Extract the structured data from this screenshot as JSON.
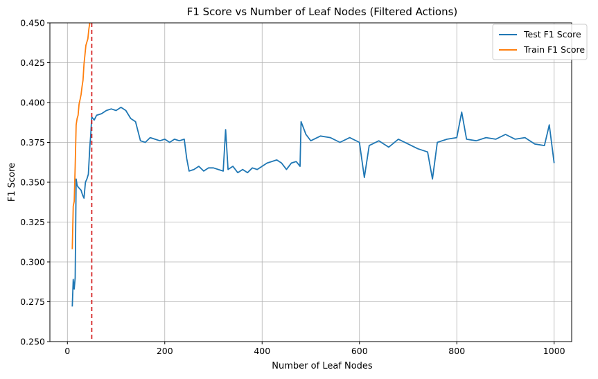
{
  "chart_data": {
    "type": "line",
    "title": "F1 Score vs Number of Leaf Nodes (Filtered Actions)",
    "xlabel": "Number of Leaf Nodes",
    "ylabel": "F1 Score",
    "xlim": [
      -36,
      1036
    ],
    "ylim": [
      0.25,
      0.45
    ],
    "xticks": [
      0,
      200,
      400,
      600,
      800,
      1000
    ],
    "xtick_labels": [
      "0",
      "200",
      "400",
      "600",
      "800",
      "1000"
    ],
    "yticks": [
      0.25,
      0.275,
      0.3,
      0.325,
      0.35,
      0.375,
      0.4,
      0.425,
      0.45
    ],
    "ytick_labels": [
      "0.250",
      "0.275",
      "0.300",
      "0.325",
      "0.350",
      "0.375",
      "0.400",
      "0.425",
      "0.450"
    ],
    "grid": true,
    "legend_position": "top-right",
    "reference_line": {
      "x": 50,
      "color": "#d62728",
      "style": "dashed"
    },
    "series": [
      {
        "name": "Test F1 Score",
        "color": "#1f77b4",
        "x": [
          10,
          12,
          14,
          16,
          18,
          20,
          22,
          25,
          28,
          31,
          34,
          37,
          40,
          43,
          46,
          48,
          50,
          55,
          60,
          70,
          80,
          90,
          100,
          110,
          120,
          130,
          140,
          150,
          160,
          170,
          180,
          190,
          200,
          210,
          220,
          230,
          240,
          245,
          250,
          260,
          270,
          280,
          290,
          300,
          310,
          320,
          325,
          330,
          340,
          350,
          360,
          370,
          380,
          390,
          400,
          410,
          420,
          430,
          440,
          450,
          460,
          470,
          478,
          480,
          490,
          500,
          520,
          540,
          560,
          580,
          600,
          610,
          620,
          640,
          660,
          680,
          700,
          720,
          740,
          750,
          760,
          780,
          800,
          810,
          820,
          840,
          860,
          880,
          900,
          920,
          940,
          960,
          980,
          990,
          1000
        ],
        "y": [
          0.272,
          0.289,
          0.283,
          0.29,
          0.352,
          0.348,
          0.347,
          0.346,
          0.345,
          0.342,
          0.34,
          0.35,
          0.352,
          0.355,
          0.372,
          0.38,
          0.391,
          0.389,
          0.392,
          0.393,
          0.395,
          0.396,
          0.395,
          0.397,
          0.395,
          0.39,
          0.388,
          0.376,
          0.375,
          0.378,
          0.377,
          0.376,
          0.377,
          0.375,
          0.377,
          0.376,
          0.377,
          0.365,
          0.357,
          0.358,
          0.36,
          0.357,
          0.359,
          0.359,
          0.358,
          0.357,
          0.383,
          0.358,
          0.36,
          0.356,
          0.358,
          0.356,
          0.359,
          0.358,
          0.36,
          0.362,
          0.363,
          0.364,
          0.362,
          0.358,
          0.362,
          0.363,
          0.36,
          0.388,
          0.38,
          0.376,
          0.379,
          0.378,
          0.375,
          0.378,
          0.375,
          0.353,
          0.373,
          0.376,
          0.372,
          0.377,
          0.374,
          0.371,
          0.369,
          0.352,
          0.375,
          0.377,
          0.378,
          0.394,
          0.377,
          0.376,
          0.378,
          0.377,
          0.38,
          0.377,
          0.378,
          0.374,
          0.373,
          0.386,
          0.362
        ]
      },
      {
        "name": "Train F1 Score",
        "color": "#ff7f0e",
        "x": [
          10,
          12,
          14,
          16,
          18,
          20,
          22,
          24,
          26,
          28,
          30,
          32,
          34,
          36,
          38,
          40,
          42,
          44,
          46
        ],
        "y": [
          0.308,
          0.335,
          0.338,
          0.36,
          0.386,
          0.39,
          0.392,
          0.399,
          0.402,
          0.405,
          0.41,
          0.414,
          0.424,
          0.43,
          0.436,
          0.438,
          0.44,
          0.446,
          0.45
        ]
      }
    ]
  }
}
